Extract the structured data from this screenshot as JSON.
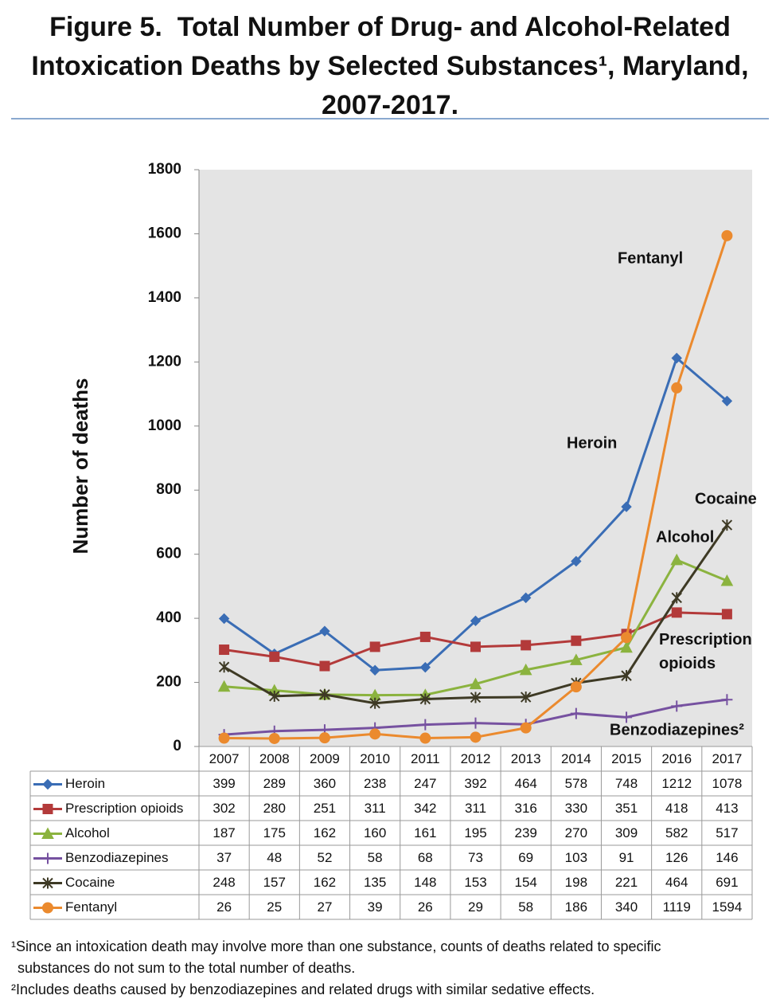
{
  "chart_data": {
    "type": "line",
    "title": "Figure 5.  Total Number of Drug- and Alcohol-Related Intoxication Deaths by Selected Substances¹, Maryland, 2007-2017.",
    "y_label": "Number of deaths",
    "categories": [
      "2007",
      "2008",
      "2009",
      "2010",
      "2011",
      "2012",
      "2013",
      "2014",
      "2015",
      "2016",
      "2017"
    ],
    "ylim": [
      0,
      1800
    ],
    "yticks": [
      0,
      200,
      400,
      600,
      800,
      1000,
      1200,
      1400,
      1600,
      1800
    ],
    "grid": false,
    "series": [
      {
        "name": "Heroin",
        "color": "#3a6db5",
        "marker": "diamond",
        "values": [
          399,
          289,
          360,
          238,
          247,
          392,
          464,
          578,
          748,
          1212,
          1078
        ]
      },
      {
        "name": "Prescription opioids",
        "color": "#b33a3a",
        "marker": "square",
        "values": [
          302,
          280,
          251,
          311,
          342,
          311,
          316,
          330,
          351,
          418,
          413
        ]
      },
      {
        "name": "Alcohol",
        "color": "#8bb33f",
        "marker": "triangle",
        "values": [
          187,
          175,
          162,
          160,
          161,
          195,
          239,
          270,
          309,
          582,
          517
        ]
      },
      {
        "name": "Benzodiazepines",
        "color": "#7651a0",
        "marker": "plus",
        "values": [
          37,
          48,
          52,
          58,
          68,
          73,
          69,
          103,
          91,
          126,
          146
        ]
      },
      {
        "name": "Cocaine",
        "color": "#3e3a25",
        "marker": "star",
        "values": [
          248,
          157,
          162,
          135,
          148,
          153,
          154,
          198,
          221,
          464,
          691
        ]
      },
      {
        "name": "Fentanyl",
        "color": "#eb8a2e",
        "marker": "circle",
        "values": [
          26,
          25,
          27,
          39,
          26,
          29,
          58,
          186,
          340,
          1119,
          1594
        ]
      }
    ],
    "annotations": [
      "Fentanyl",
      "Heroin",
      "Cocaine",
      "Alcohol",
      "Prescription opioids",
      "Benzodiazepines²"
    ],
    "footnotes": [
      "¹Since an intoxication death may involve more than one substance, counts of deaths related to specific substances do not sum to the total number of deaths.",
      "²Includes deaths caused by benzodiazepines and related drugs with similar sedative effects."
    ]
  }
}
